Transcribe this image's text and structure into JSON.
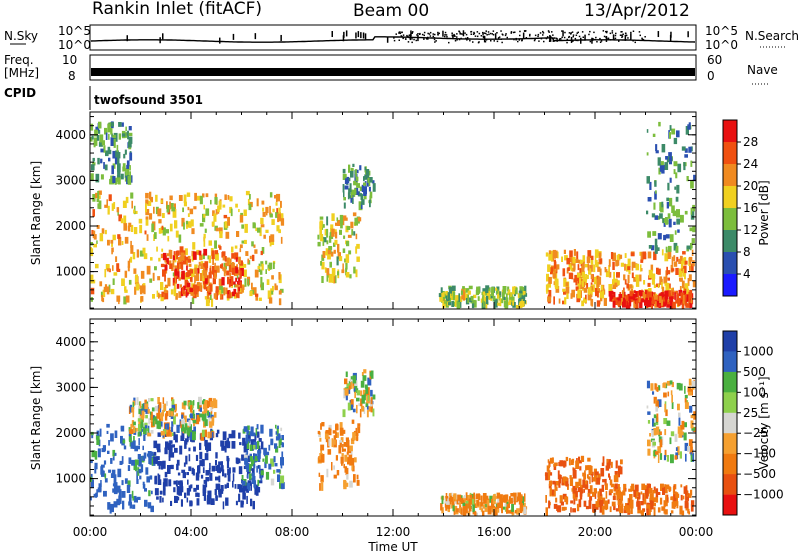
{
  "header": {
    "station": "Rankin Inlet (fitACF)",
    "beam": "Beam 00",
    "date": "13/Apr/2012"
  },
  "aux_panels": {
    "nsky_label": "N.Sky",
    "nsky_ticks": [
      "10^5",
      "10^0"
    ],
    "nsearch_label": "N.Search",
    "nsearch_ticks": [
      "10^5",
      "10^0"
    ],
    "freq_label": "Freq.",
    "freq_unit": "[MHz]",
    "freq_ticks": [
      "10",
      "8"
    ],
    "nave_label": "Nave",
    "nave_ticks": [
      "60",
      "0"
    ],
    "cpid_label": "CPID",
    "cpid_value": "twofsound 3501"
  },
  "colors": {
    "power": [
      "#1a1aff",
      "#2a4fb0",
      "#3c8a68",
      "#7cbd3c",
      "#f0d020",
      "#f08a20",
      "#f05010",
      "#e81010"
    ],
    "velocity": [
      "#1f3fa8",
      "#2f62c0",
      "#4ab040",
      "#8ed04c",
      "#d6d6d2",
      "#f5a030",
      "#f07a10",
      "#e85010",
      "#e81010"
    ]
  },
  "chart_data": [
    {
      "type": "heatmap",
      "name": "power",
      "ylabel": "Slant Range [km]",
      "xlabel": "",
      "ylim": [
        180,
        4500
      ],
      "yticks": [
        "1000",
        "2000",
        "3000",
        "4000"
      ],
      "xticks": [
        "00:00",
        "04:00",
        "08:00",
        "12:00",
        "16:00",
        "20:00",
        "00:00"
      ],
      "colorbar": {
        "label": "Power [dB]",
        "ticks": [
          "4",
          "8",
          "12",
          "16",
          "20",
          "24",
          "28"
        ],
        "range": [
          0,
          30
        ]
      },
      "echo_regions": [
        {
          "t0": 0.0,
          "t1": 7.6,
          "r0": 400,
          "r1": 2800,
          "v": 18
        },
        {
          "t0": 0.0,
          "t1": 1.6,
          "r0": 3000,
          "r1": 4300,
          "v": 10
        },
        {
          "t0": 2.8,
          "t1": 6.0,
          "r0": 500,
          "r1": 1500,
          "v": 24
        },
        {
          "t0": 9.0,
          "t1": 10.6,
          "r0": 900,
          "r1": 2300,
          "v": 16
        },
        {
          "t0": 10.0,
          "t1": 11.2,
          "r0": 2500,
          "r1": 3400,
          "v": 10
        },
        {
          "t0": 13.8,
          "t1": 17.2,
          "r0": 250,
          "r1": 700,
          "v": 14
        },
        {
          "t0": 18.0,
          "t1": 23.9,
          "r0": 350,
          "r1": 1500,
          "v": 20
        },
        {
          "t0": 20.5,
          "t1": 23.8,
          "r0": 200,
          "r1": 600,
          "v": 26
        },
        {
          "t0": 22.0,
          "t1": 24.0,
          "r0": 1500,
          "r1": 4300,
          "v": 10
        }
      ]
    },
    {
      "type": "heatmap",
      "name": "velocity",
      "ylabel": "Slant Range [km]",
      "xlabel": "Time UT",
      "ylim": [
        180,
        4500
      ],
      "yticks": [
        "1000",
        "2000",
        "3000",
        "4000"
      ],
      "xticks": [
        "00:00",
        "04:00",
        "08:00",
        "12:00",
        "16:00",
        "20:00",
        "00:00"
      ],
      "colorbar": {
        "label": "Velocity [m s⁻¹]",
        "ticks": [
          "1000",
          "500",
          "100",
          "25",
          "−25",
          "−100",
          "−500",
          "−1000"
        ],
        "range": [
          -1000,
          1000
        ]
      },
      "echo_regions": [
        {
          "t0": 0.0,
          "t1": 2.5,
          "r0": 400,
          "r1": 2200,
          "v": 200
        },
        {
          "t0": 2.5,
          "t1": 6.8,
          "r0": 500,
          "r1": 2100,
          "v": 800
        },
        {
          "t0": 1.5,
          "t1": 5.0,
          "r0": 2000,
          "r1": 2800,
          "v": 0
        },
        {
          "t0": 6.0,
          "t1": 7.6,
          "r0": 900,
          "r1": 2200,
          "v": 150
        },
        {
          "t0": 9.0,
          "t1": 10.6,
          "r0": 900,
          "r1": 2300,
          "v": -150
        },
        {
          "t0": 10.0,
          "t1": 11.2,
          "r0": 2500,
          "r1": 3400,
          "v": 0
        },
        {
          "t0": 13.8,
          "t1": 17.2,
          "r0": 250,
          "r1": 700,
          "v": -100
        },
        {
          "t0": 18.0,
          "t1": 21.0,
          "r0": 350,
          "r1": 1500,
          "v": -300
        },
        {
          "t0": 20.5,
          "t1": 23.8,
          "r0": 200,
          "r1": 900,
          "v": -250
        },
        {
          "t0": 22.0,
          "t1": 24.0,
          "r0": 1500,
          "r1": 3200,
          "v": 0
        }
      ]
    }
  ]
}
